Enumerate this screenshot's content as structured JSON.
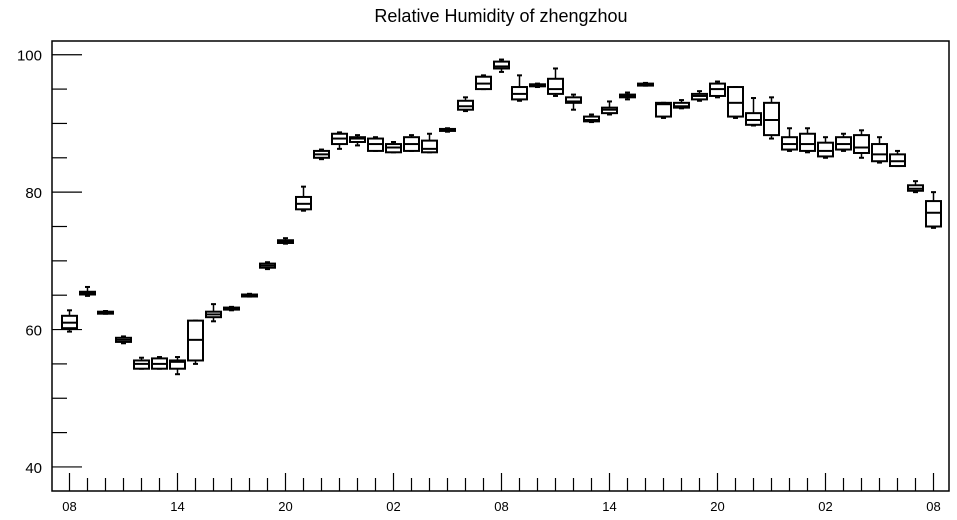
{
  "chart_data": {
    "type": "boxplot",
    "title": "Relative Humidity of zhengzhou",
    "xlabel": "",
    "ylabel": "",
    "ylim": [
      36.5,
      102
    ],
    "y_ticks": [
      40,
      60,
      80,
      100
    ],
    "x_tick_labels": [
      "08",
      "14",
      "20",
      "02",
      "08",
      "14",
      "20",
      "02",
      "08"
    ],
    "grid": false,
    "series": [
      {
        "boxes": [
          {
            "x": 0,
            "min": 59.7,
            "q1": 60.2,
            "median": 61.0,
            "q3": 62.0,
            "max": 62.8
          },
          {
            "x": 1,
            "min": 64.9,
            "q1": 65.1,
            "median": 65.3,
            "q3": 65.5,
            "max": 66.2
          },
          {
            "x": 2,
            "min": 62.3,
            "q1": 62.4,
            "median": 62.5,
            "q3": 62.6,
            "max": 62.7
          },
          {
            "x": 3,
            "min": 58.0,
            "q1": 58.2,
            "median": 58.5,
            "q3": 58.8,
            "max": 59.0
          },
          {
            "x": 4,
            "min": 54.3,
            "q1": 54.3,
            "median": 55.0,
            "q3": 55.5,
            "max": 55.9
          },
          {
            "x": 5,
            "min": 54.3,
            "q1": 54.3,
            "median": 55.0,
            "q3": 55.8,
            "max": 56.0
          },
          {
            "x": 6,
            "min": 53.5,
            "q1": 54.3,
            "median": 55.3,
            "q3": 55.5,
            "max": 56.0
          },
          {
            "x": 7,
            "min": 55.0,
            "q1": 55.5,
            "median": 58.5,
            "q3": 61.3,
            "max": 61.3
          },
          {
            "x": 8,
            "min": 61.2,
            "q1": 61.8,
            "median": 62.2,
            "q3": 62.6,
            "max": 63.7
          },
          {
            "x": 9,
            "min": 62.8,
            "q1": 62.9,
            "median": 63.0,
            "q3": 63.2,
            "max": 63.3
          },
          {
            "x": 10,
            "min": 64.8,
            "q1": 64.9,
            "median": 65.0,
            "q3": 65.1,
            "max": 65.2
          },
          {
            "x": 11,
            "min": 68.8,
            "q1": 69.0,
            "median": 69.3,
            "q3": 69.6,
            "max": 69.8
          },
          {
            "x": 12,
            "min": 72.5,
            "q1": 72.6,
            "median": 72.8,
            "q3": 73.0,
            "max": 73.3
          },
          {
            "x": 13,
            "min": 77.3,
            "q1": 77.5,
            "median": 78.3,
            "q3": 79.3,
            "max": 80.8
          },
          {
            "x": 14,
            "min": 84.8,
            "q1": 85.0,
            "median": 85.5,
            "q3": 86.0,
            "max": 86.2
          },
          {
            "x": 15,
            "min": 86.3,
            "q1": 87.0,
            "median": 87.8,
            "q3": 88.5,
            "max": 88.7
          },
          {
            "x": 16,
            "min": 86.8,
            "q1": 87.3,
            "median": 87.8,
            "q3": 88.0,
            "max": 88.3
          },
          {
            "x": 17,
            "min": 86.0,
            "q1": 86.0,
            "median": 87.0,
            "q3": 87.8,
            "max": 88.0
          },
          {
            "x": 18,
            "min": 85.8,
            "q1": 85.8,
            "median": 86.5,
            "q3": 87.0,
            "max": 87.3
          },
          {
            "x": 19,
            "min": 86.0,
            "q1": 86.0,
            "median": 87.0,
            "q3": 88.0,
            "max": 88.3
          },
          {
            "x": 20,
            "min": 85.8,
            "q1": 85.8,
            "median": 86.3,
            "q3": 87.5,
            "max": 88.5
          },
          {
            "x": 21,
            "min": 88.8,
            "q1": 89.0,
            "median": 89.1,
            "q3": 89.2,
            "max": 89.3
          },
          {
            "x": 22,
            "min": 91.8,
            "q1": 92.0,
            "median": 92.5,
            "q3": 93.3,
            "max": 93.8
          },
          {
            "x": 23,
            "min": 95.0,
            "q1": 95.0,
            "median": 95.8,
            "q3": 96.8,
            "max": 97.0
          },
          {
            "x": 24,
            "min": 97.5,
            "q1": 98.0,
            "median": 98.3,
            "q3": 99.0,
            "max": 99.3
          },
          {
            "x": 25,
            "min": 93.3,
            "q1": 93.5,
            "median": 94.3,
            "q3": 95.3,
            "max": 97.0
          },
          {
            "x": 26,
            "min": 95.3,
            "q1": 95.4,
            "median": 95.5,
            "q3": 95.7,
            "max": 95.8
          },
          {
            "x": 27,
            "min": 94.0,
            "q1": 94.3,
            "median": 95.0,
            "q3": 96.5,
            "max": 98.0
          },
          {
            "x": 28,
            "min": 92.0,
            "q1": 93.0,
            "median": 93.2,
            "q3": 93.8,
            "max": 94.2
          },
          {
            "x": 29,
            "min": 90.2,
            "q1": 90.3,
            "median": 90.5,
            "q3": 91.0,
            "max": 91.3
          },
          {
            "x": 30,
            "min": 91.3,
            "q1": 91.5,
            "median": 92.0,
            "q3": 92.3,
            "max": 93.2
          },
          {
            "x": 31,
            "min": 93.5,
            "q1": 93.8,
            "median": 94.0,
            "q3": 94.2,
            "max": 94.5
          },
          {
            "x": 32,
            "min": 95.5,
            "q1": 95.6,
            "median": 95.7,
            "q3": 95.8,
            "max": 95.9
          },
          {
            "x": 33,
            "min": 90.8,
            "q1": 91.0,
            "median": 92.8,
            "q3": 93.0,
            "max": 93.0
          },
          {
            "x": 34,
            "min": 92.2,
            "q1": 92.3,
            "median": 92.5,
            "q3": 93.0,
            "max": 93.4
          },
          {
            "x": 35,
            "min": 93.3,
            "q1": 93.5,
            "median": 94.0,
            "q3": 94.3,
            "max": 94.7
          },
          {
            "x": 36,
            "min": 93.8,
            "q1": 94.0,
            "median": 95.0,
            "q3": 95.8,
            "max": 96.1
          },
          {
            "x": 37,
            "min": 90.8,
            "q1": 91.0,
            "median": 93.0,
            "q3": 95.3,
            "max": 95.3
          },
          {
            "x": 38,
            "min": 89.7,
            "q1": 89.8,
            "median": 90.5,
            "q3": 91.5,
            "max": 93.7
          },
          {
            "x": 39,
            "min": 87.8,
            "q1": 88.3,
            "median": 90.5,
            "q3": 93.0,
            "max": 93.8
          },
          {
            "x": 40,
            "min": 86.0,
            "q1": 86.2,
            "median": 87.0,
            "q3": 88.0,
            "max": 89.3
          },
          {
            "x": 41,
            "min": 85.8,
            "q1": 86.0,
            "median": 87.0,
            "q3": 88.5,
            "max": 89.3
          },
          {
            "x": 42,
            "min": 85.0,
            "q1": 85.2,
            "median": 86.0,
            "q3": 87.2,
            "max": 88.0
          },
          {
            "x": 43,
            "min": 86.0,
            "q1": 86.2,
            "median": 87.0,
            "q3": 88.0,
            "max": 88.5
          },
          {
            "x": 44,
            "min": 85.0,
            "q1": 85.7,
            "median": 86.5,
            "q3": 88.3,
            "max": 89.0
          },
          {
            "x": 45,
            "min": 84.3,
            "q1": 84.5,
            "median": 85.5,
            "q3": 87.0,
            "max": 88.0
          },
          {
            "x": 46,
            "min": 83.8,
            "q1": 83.8,
            "median": 84.5,
            "q3": 85.5,
            "max": 86.0
          },
          {
            "x": 47,
            "min": 80.0,
            "q1": 80.2,
            "median": 80.5,
            "q3": 81.0,
            "max": 81.6
          },
          {
            "x": 48,
            "min": 74.8,
            "q1": 75.0,
            "median": 77.0,
            "q3": 78.7,
            "max": 80.0
          }
        ]
      }
    ],
    "colors": {
      "stroke": "#000000",
      "background": "#ffffff"
    }
  }
}
